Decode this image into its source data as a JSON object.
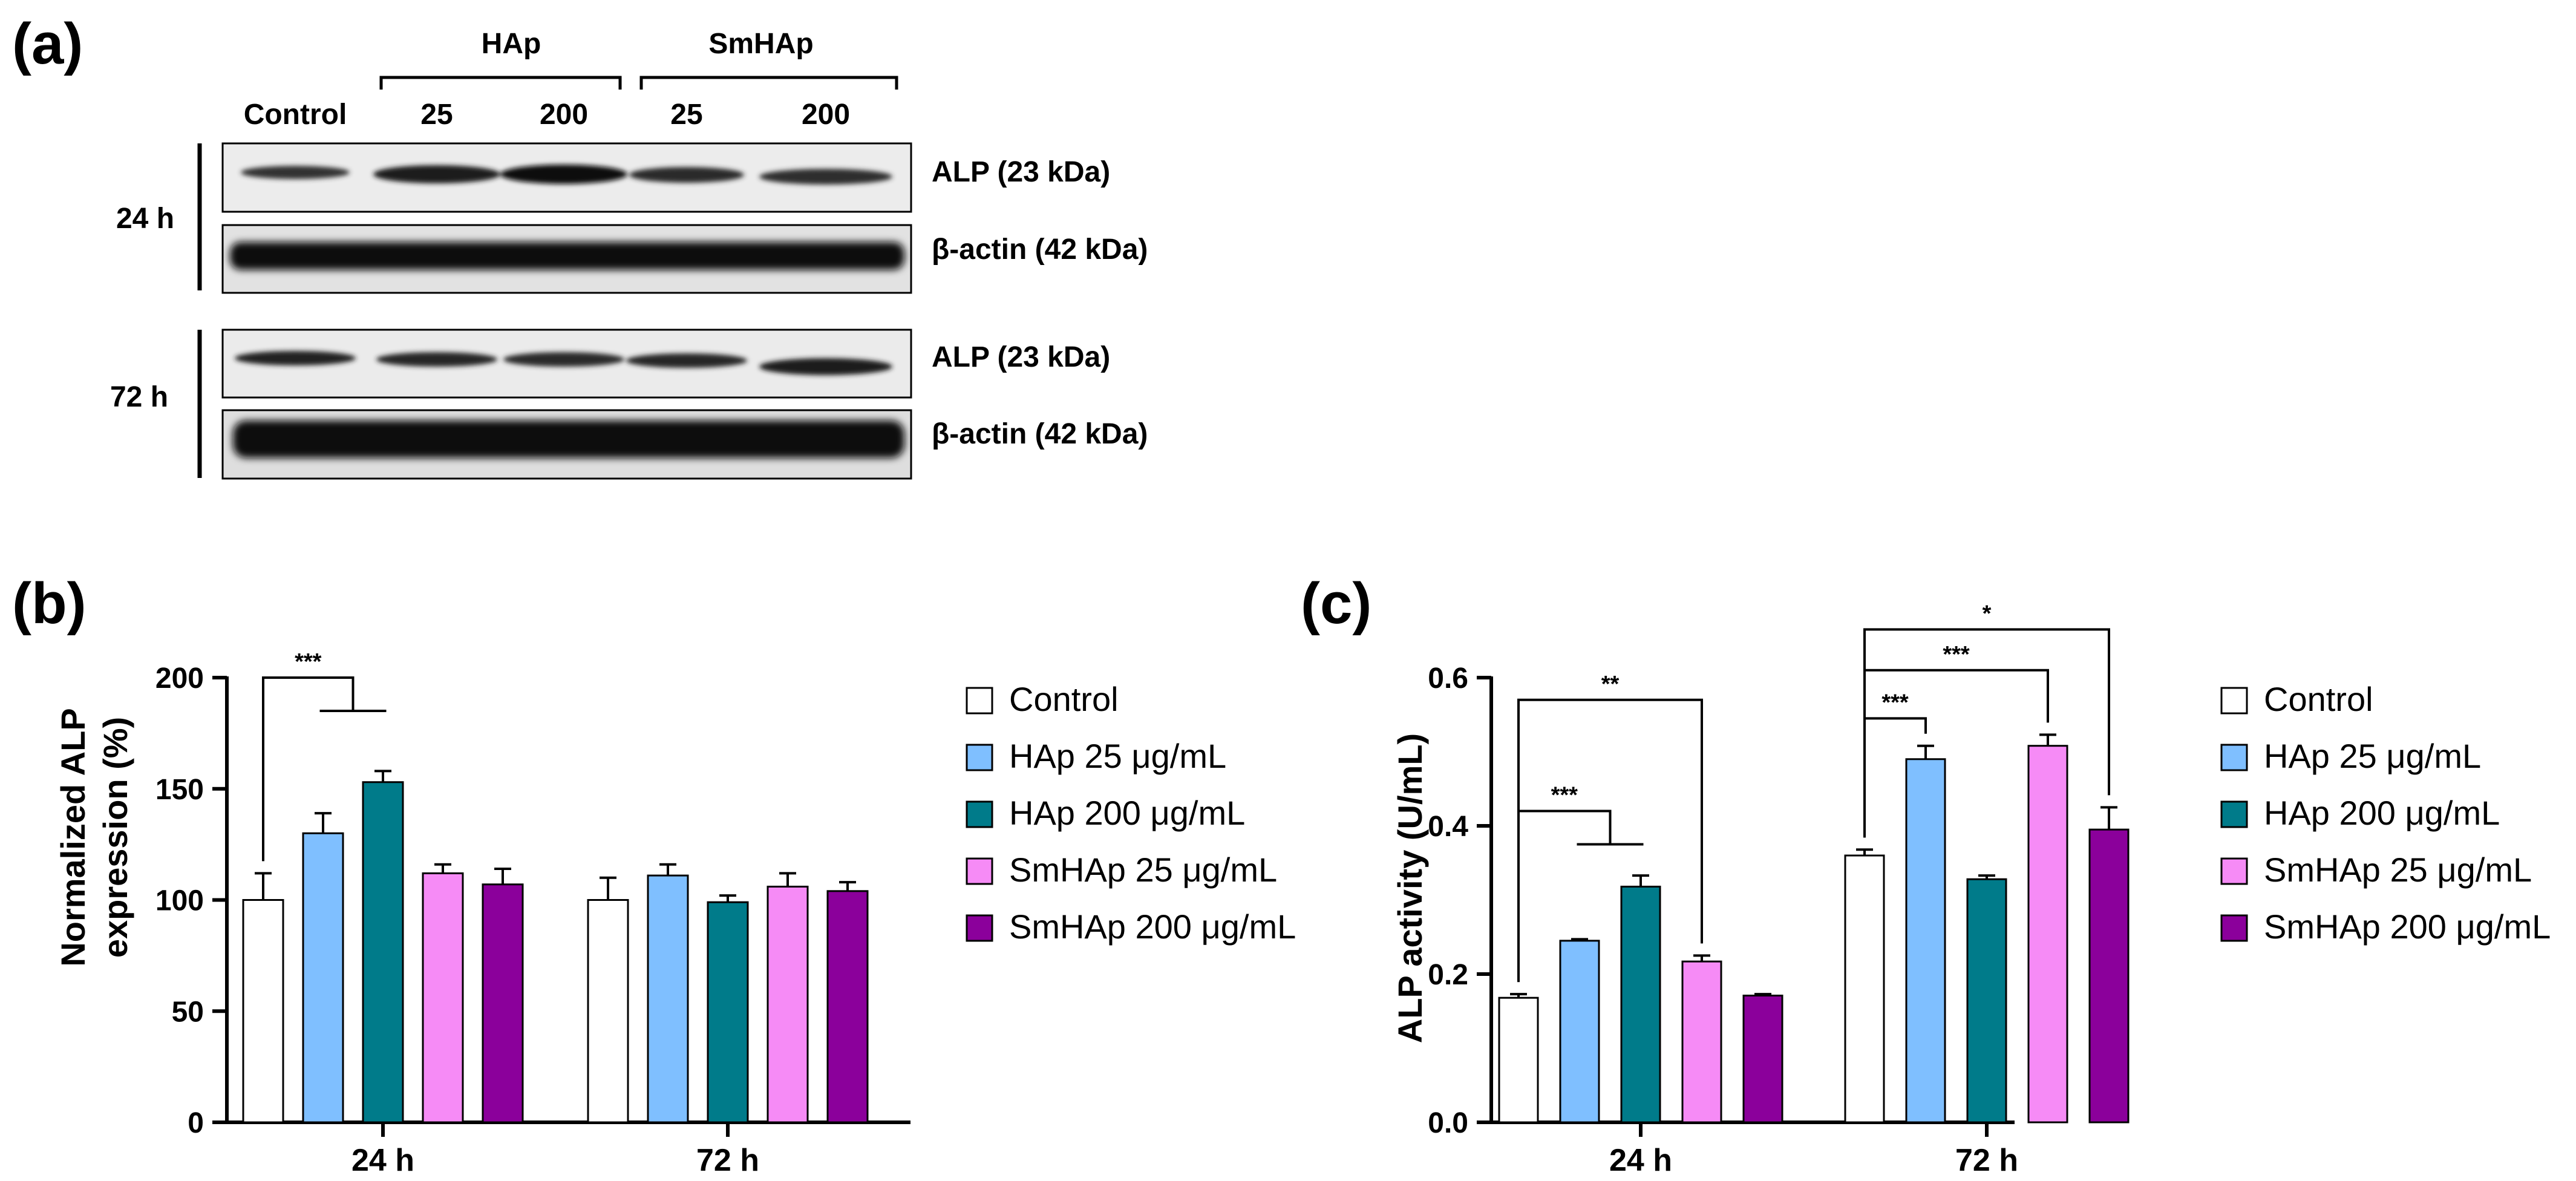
{
  "panel_a": {
    "label": "(a)",
    "groups": [
      "HAp",
      "SmHAp"
    ],
    "lanes": [
      "Control",
      "25",
      "200",
      "25",
      "200"
    ],
    "timepoints": [
      "24 h",
      "72 h"
    ],
    "bands": [
      "ALP (23 kDa)",
      "β-actin (42 kDa)"
    ]
  },
  "colors": {
    "Control": "#ffffff",
    "HAp 25": "#7fbfff",
    "HAp 200": "#007b8a",
    "SmHAp 25": "#f68bf6",
    "SmHAp 200": "#8b009b"
  },
  "chart_data": [
    {
      "id": "b",
      "label": "(b)",
      "type": "bar",
      "ylabel_lines": [
        "Normalized ALP",
        "expression (%)"
      ],
      "xlabel": "",
      "categories": [
        "24 h",
        "72 h"
      ],
      "ylim": [
        0,
        200
      ],
      "yticks": [
        0,
        50,
        100,
        150,
        200
      ],
      "ytick_labels": [
        "0",
        "50",
        "100",
        "150",
        "200"
      ],
      "legend": [
        "Control",
        "HAp 25 μg/mL",
        "HAp 200 μg/mL",
        "SmHAp 25 μg/mL",
        "SmHAp 200 μg/mL"
      ],
      "legend_position": "right",
      "series": [
        {
          "name": "Control",
          "values": [
            100,
            100
          ],
          "errors": [
            12,
            10
          ]
        },
        {
          "name": "HAp 25 μg/mL",
          "values": [
            130,
            111
          ],
          "errors": [
            9,
            5
          ]
        },
        {
          "name": "HAp 200 μg/mL",
          "values": [
            153,
            99
          ],
          "errors": [
            5,
            3
          ]
        },
        {
          "name": "SmHAp 25 μg/mL",
          "values": [
            112,
            106
          ],
          "errors": [
            4,
            6
          ]
        },
        {
          "name": "SmHAp 200 μg/mL",
          "values": [
            107,
            104
          ],
          "errors": [
            7,
            4
          ]
        }
      ],
      "significance": [
        {
          "label": "***",
          "group": "24 h",
          "from": 0,
          "to_pair": [
            1,
            2
          ],
          "y": 200
        }
      ]
    },
    {
      "id": "c",
      "label": "(c)",
      "type": "bar",
      "ylabel_lines": [
        "ALP activity (U/mL)"
      ],
      "xlabel": "",
      "categories": [
        "24 h",
        "72 h"
      ],
      "ylim": [
        0,
        0.6
      ],
      "yticks": [
        0,
        0.2,
        0.4,
        0.6
      ],
      "ytick_labels": [
        "0.0",
        "0.2",
        "0.4",
        "0.6"
      ],
      "legend": [
        "Control",
        "HAp 25 μg/mL",
        "HAp 200 μg/mL",
        "SmHAp 25 μg/mL",
        "SmHAp 200 μg/mL"
      ],
      "legend_position": "right",
      "series": [
        {
          "name": "Control",
          "values": [
            0.168,
            0.36
          ],
          "errors": [
            0.005,
            0.008
          ]
        },
        {
          "name": "HAp 25 μg/mL",
          "values": [
            0.245,
            0.49
          ],
          "errors": [
            0.002,
            0.018
          ]
        },
        {
          "name": "HAp 200 μg/mL",
          "values": [
            0.318,
            0.328
          ],
          "errors": [
            0.015,
            0.005
          ]
        },
        {
          "name": "SmHAp 25 μg/mL",
          "values": [
            0.217,
            0.508
          ],
          "errors": [
            0.008,
            0.015
          ]
        },
        {
          "name": "SmHAp 200 μg/mL",
          "values": [
            0.171,
            0.395
          ],
          "errors": [
            0.002,
            0.03
          ]
        }
      ],
      "significance": [
        {
          "label": "***",
          "group": "24 h",
          "from": 0,
          "to_pair": [
            1,
            2
          ],
          "y": 0.42
        },
        {
          "label": "**",
          "group": "24 h",
          "from": 0,
          "to": 3,
          "y": 0.57
        },
        {
          "label": "***",
          "group": "72 h",
          "from": 0,
          "to": 1,
          "y": 0.545
        },
        {
          "label": "***",
          "group": "72 h",
          "from": 0,
          "to": 3,
          "y": 0.61
        },
        {
          "label": "*",
          "group": "72 h",
          "from": 0,
          "to": 4,
          "y": 0.665
        }
      ]
    }
  ]
}
